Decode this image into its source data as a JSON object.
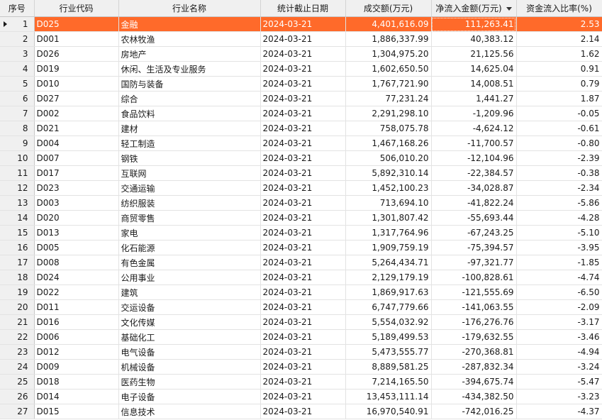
{
  "columns": {
    "index": "序号",
    "code": "行业代码",
    "name": "行业名称",
    "date": "统计截止日期",
    "turnover": "成交额(万元)",
    "net_inflow": "净流入金额(万元)",
    "inflow_ratio": "资金流入比率(%)"
  },
  "sort": {
    "column": "net_inflow",
    "direction": "descending",
    "icon": "sort-desc-icon"
  },
  "selected_row": 1,
  "selection_color": "#ff6a2a",
  "rows": [
    {
      "index": "1",
      "code": "D025",
      "name": "金融",
      "date": "2024-03-21",
      "turnover": "4,401,616.09",
      "net_inflow": "111,263.41",
      "inflow_ratio": "2.53"
    },
    {
      "index": "2",
      "code": "D001",
      "name": "农林牧渔",
      "date": "2024-03-21",
      "turnover": "1,886,337.99",
      "net_inflow": "40,383.12",
      "inflow_ratio": "2.14"
    },
    {
      "index": "3",
      "code": "D026",
      "name": "房地产",
      "date": "2024-03-21",
      "turnover": "1,304,975.20",
      "net_inflow": "21,125.56",
      "inflow_ratio": "1.62"
    },
    {
      "index": "4",
      "code": "D019",
      "name": "休闲、生活及专业服务",
      "date": "2024-03-21",
      "turnover": "1,602,650.50",
      "net_inflow": "14,625.04",
      "inflow_ratio": "0.91"
    },
    {
      "index": "5",
      "code": "D010",
      "name": "国防与装备",
      "date": "2024-03-21",
      "turnover": "1,767,721.90",
      "net_inflow": "14,008.51",
      "inflow_ratio": "0.79"
    },
    {
      "index": "6",
      "code": "D027",
      "name": "综合",
      "date": "2024-03-21",
      "turnover": "77,231.24",
      "net_inflow": "1,441.27",
      "inflow_ratio": "1.87"
    },
    {
      "index": "7",
      "code": "D002",
      "name": "食品饮料",
      "date": "2024-03-21",
      "turnover": "2,291,298.10",
      "net_inflow": "-1,209.96",
      "inflow_ratio": "-0.05"
    },
    {
      "index": "8",
      "code": "D021",
      "name": "建材",
      "date": "2024-03-21",
      "turnover": "758,075.78",
      "net_inflow": "-4,624.12",
      "inflow_ratio": "-0.61"
    },
    {
      "index": "9",
      "code": "D004",
      "name": "轻工制造",
      "date": "2024-03-21",
      "turnover": "1,467,168.26",
      "net_inflow": "-11,700.57",
      "inflow_ratio": "-0.80"
    },
    {
      "index": "10",
      "code": "D007",
      "name": "钢铁",
      "date": "2024-03-21",
      "turnover": "506,010.20",
      "net_inflow": "-12,104.96",
      "inflow_ratio": "-2.39"
    },
    {
      "index": "11",
      "code": "D017",
      "name": "互联网",
      "date": "2024-03-21",
      "turnover": "5,892,310.14",
      "net_inflow": "-22,384.57",
      "inflow_ratio": "-0.38"
    },
    {
      "index": "12",
      "code": "D023",
      "name": "交通运输",
      "date": "2024-03-21",
      "turnover": "1,452,100.23",
      "net_inflow": "-34,028.87",
      "inflow_ratio": "-2.34"
    },
    {
      "index": "13",
      "code": "D003",
      "name": "纺织服装",
      "date": "2024-03-21",
      "turnover": "713,694.10",
      "net_inflow": "-41,822.24",
      "inflow_ratio": "-5.86"
    },
    {
      "index": "14",
      "code": "D020",
      "name": "商贸零售",
      "date": "2024-03-21",
      "turnover": "1,301,807.42",
      "net_inflow": "-55,693.44",
      "inflow_ratio": "-4.28"
    },
    {
      "index": "15",
      "code": "D013",
      "name": "家电",
      "date": "2024-03-21",
      "turnover": "1,317,764.96",
      "net_inflow": "-67,243.25",
      "inflow_ratio": "-5.10"
    },
    {
      "index": "16",
      "code": "D005",
      "name": "化石能源",
      "date": "2024-03-21",
      "turnover": "1,909,759.19",
      "net_inflow": "-75,394.57",
      "inflow_ratio": "-3.95"
    },
    {
      "index": "17",
      "code": "D008",
      "name": "有色金属",
      "date": "2024-03-21",
      "turnover": "5,264,434.71",
      "net_inflow": "-97,321.77",
      "inflow_ratio": "-1.85"
    },
    {
      "index": "18",
      "code": "D024",
      "name": "公用事业",
      "date": "2024-03-21",
      "turnover": "2,129,179.19",
      "net_inflow": "-100,828.61",
      "inflow_ratio": "-4.74"
    },
    {
      "index": "19",
      "code": "D022",
      "name": "建筑",
      "date": "2024-03-21",
      "turnover": "1,869,917.63",
      "net_inflow": "-121,555.69",
      "inflow_ratio": "-6.50"
    },
    {
      "index": "20",
      "code": "D011",
      "name": "交运设备",
      "date": "2024-03-21",
      "turnover": "6,747,779.66",
      "net_inflow": "-141,063.55",
      "inflow_ratio": "-2.09"
    },
    {
      "index": "21",
      "code": "D016",
      "name": "文化传媒",
      "date": "2024-03-21",
      "turnover": "5,554,032.92",
      "net_inflow": "-176,276.76",
      "inflow_ratio": "-3.17"
    },
    {
      "index": "22",
      "code": "D006",
      "name": "基础化工",
      "date": "2024-03-21",
      "turnover": "5,189,499.53",
      "net_inflow": "-179,632.55",
      "inflow_ratio": "-3.46"
    },
    {
      "index": "23",
      "code": "D012",
      "name": "电气设备",
      "date": "2024-03-21",
      "turnover": "5,473,555.77",
      "net_inflow": "-270,368.81",
      "inflow_ratio": "-4.94"
    },
    {
      "index": "24",
      "code": "D009",
      "name": "机械设备",
      "date": "2024-03-21",
      "turnover": "8,889,581.25",
      "net_inflow": "-287,832.34",
      "inflow_ratio": "-3.24"
    },
    {
      "index": "25",
      "code": "D018",
      "name": "医药生物",
      "date": "2024-03-21",
      "turnover": "7,214,165.50",
      "net_inflow": "-394,675.74",
      "inflow_ratio": "-5.47"
    },
    {
      "index": "26",
      "code": "D014",
      "name": "电子设备",
      "date": "2024-03-21",
      "turnover": "13,453,111.14",
      "net_inflow": "-434,382.50",
      "inflow_ratio": "-3.23"
    },
    {
      "index": "27",
      "code": "D015",
      "name": "信息技术",
      "date": "2024-03-21",
      "turnover": "16,970,540.91",
      "net_inflow": "-742,016.25",
      "inflow_ratio": "-4.37"
    }
  ]
}
